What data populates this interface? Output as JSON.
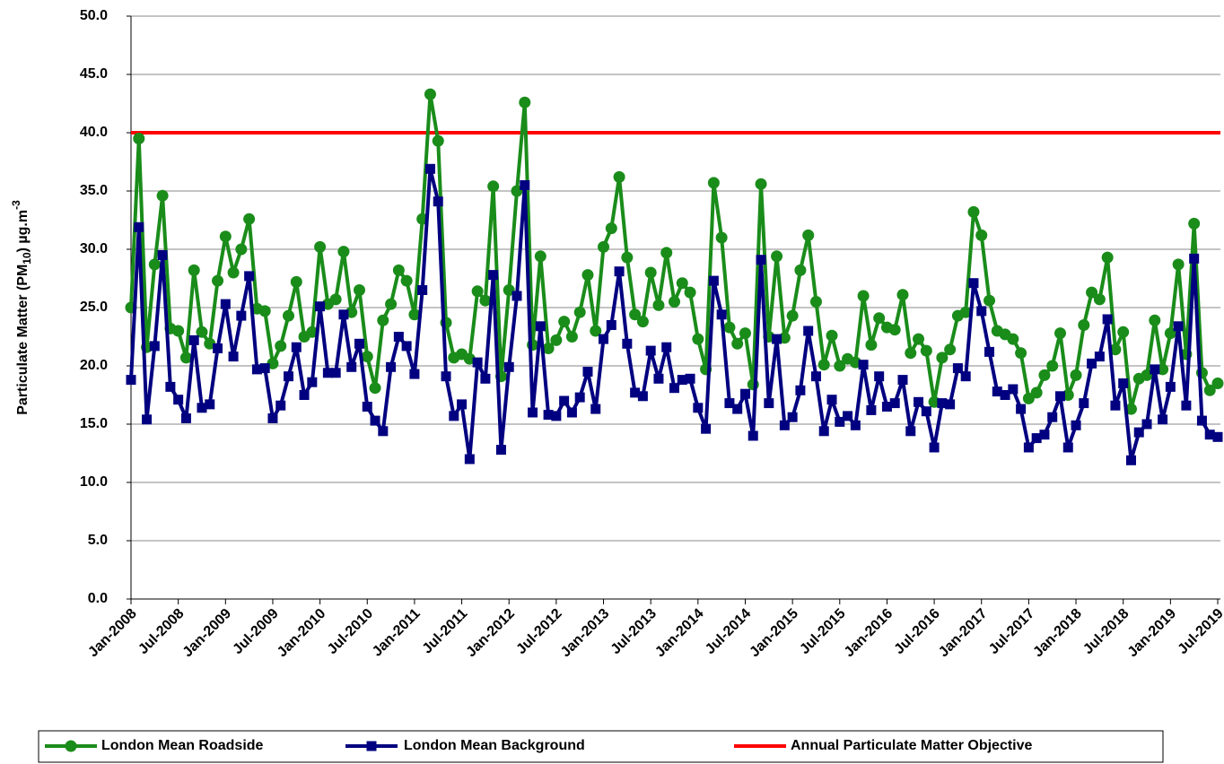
{
  "chart_data": {
    "type": "line",
    "y_label": [
      "Particulate Matter (PM",
      "10",
      ") µg.m",
      "-3"
    ],
    "categories": [
      "Jan-2008",
      null,
      null,
      null,
      null,
      null,
      "Jul-2008",
      null,
      null,
      null,
      null,
      null,
      "Jan-2009",
      null,
      null,
      null,
      null,
      null,
      "Jul-2009",
      null,
      null,
      null,
      null,
      null,
      "Jan-2010",
      null,
      null,
      null,
      null,
      null,
      "Jul-2010",
      null,
      null,
      null,
      null,
      null,
      "Jan-2011",
      null,
      null,
      null,
      null,
      null,
      "Jul-2011",
      null,
      null,
      null,
      null,
      null,
      "Jan-2012",
      null,
      null,
      null,
      null,
      null,
      "Jul-2012",
      null,
      null,
      null,
      null,
      null,
      "Jan-2013",
      null,
      null,
      null,
      null,
      null,
      "Jul-2013",
      null,
      null,
      null,
      null,
      null,
      "Jan-2014",
      null,
      null,
      null,
      null,
      null,
      "Jul-2014",
      null,
      null,
      null,
      null,
      null,
      "Jan-2015",
      null,
      null,
      null,
      null,
      null,
      "Jul-2015",
      null,
      null,
      null,
      null,
      null,
      "Jan-2016",
      null,
      null,
      null,
      null,
      null,
      "Jul-2016",
      null,
      null,
      null,
      null,
      null,
      "Jan-2017",
      null,
      null,
      null,
      null,
      null,
      "Jul-2017",
      null,
      null,
      null,
      null,
      null,
      "Jan-2018",
      null,
      null,
      null,
      null,
      null,
      "Jul-2018",
      null,
      null,
      null,
      null,
      null,
      "Jan-2019",
      null,
      null,
      null,
      null,
      null,
      "Jul-2019"
    ],
    "series": [
      {
        "name": "London Mean Roadside",
        "color": "#1a8c1a",
        "marker": "circle",
        "values": [
          25.0,
          39.5,
          21.6,
          28.7,
          34.6,
          23.2,
          23.0,
          20.7,
          28.2,
          22.9,
          21.9,
          27.3,
          31.1,
          28.0,
          30.0,
          32.6,
          24.9,
          24.7,
          20.2,
          21.7,
          24.3,
          27.2,
          22.5,
          22.9,
          30.2,
          25.3,
          25.7,
          29.8,
          24.6,
          26.5,
          20.8,
          18.1,
          23.9,
          25.3,
          28.2,
          27.3,
          24.4,
          32.6,
          43.3,
          39.3,
          23.7,
          20.7,
          21.0,
          20.6,
          26.4,
          25.6,
          35.4,
          19.1,
          26.5,
          35.0,
          42.6,
          21.8,
          29.4,
          21.5,
          22.2,
          23.8,
          22.5,
          24.6,
          27.8,
          23.0,
          30.2,
          31.8,
          36.2,
          29.3,
          24.4,
          23.8,
          28.0,
          25.2,
          29.7,
          25.5,
          27.1,
          26.3,
          22.3,
          19.7,
          35.7,
          31.0,
          23.3,
          21.9,
          22.8,
          18.4,
          35.6,
          22.5,
          29.4,
          22.4,
          24.3,
          28.2,
          31.2,
          25.5,
          20.1,
          22.6,
          20.0,
          20.6,
          20.3,
          26.0,
          21.8,
          24.1,
          23.3,
          23.1,
          26.1,
          21.1,
          22.3,
          21.3,
          16.9,
          20.7,
          21.4,
          24.3,
          24.6,
          33.2,
          31.2,
          25.6,
          23.0,
          22.7,
          22.3,
          21.1,
          17.2,
          17.7,
          19.2,
          20.0,
          22.8,
          17.5,
          19.2,
          23.5,
          26.3,
          25.7,
          29.3,
          21.4,
          22.9,
          16.3,
          18.9,
          19.2,
          23.9,
          19.7,
          22.8,
          28.7,
          21.0,
          32.2,
          19.4,
          17.9,
          18.5
        ]
      },
      {
        "name": "London Mean Background",
        "color": "#000080",
        "marker": "square",
        "values": [
          18.8,
          31.9,
          15.4,
          21.7,
          29.5,
          18.2,
          17.1,
          15.5,
          22.2,
          16.4,
          16.7,
          21.5,
          25.3,
          20.8,
          24.3,
          27.7,
          19.7,
          19.8,
          15.5,
          16.6,
          19.1,
          21.6,
          17.5,
          18.6,
          25.1,
          19.4,
          19.4,
          24.4,
          19.9,
          21.9,
          16.5,
          15.3,
          14.4,
          19.9,
          22.5,
          21.7,
          19.3,
          26.5,
          36.9,
          34.1,
          19.1,
          15.7,
          16.7,
          12.0,
          20.3,
          18.9,
          27.8,
          12.8,
          19.9,
          26.0,
          35.5,
          16.0,
          23.4,
          15.8,
          15.7,
          17.0,
          16.0,
          17.3,
          19.5,
          16.3,
          22.3,
          23.5,
          28.1,
          21.9,
          17.7,
          17.4,
          21.3,
          18.9,
          21.6,
          18.1,
          18.8,
          18.9,
          16.4,
          14.6,
          27.3,
          24.4,
          16.8,
          16.3,
          17.6,
          14.0,
          29.1,
          16.8,
          22.3,
          14.9,
          15.6,
          17.9,
          23.0,
          19.1,
          14.4,
          17.1,
          15.2,
          15.7,
          14.9,
          20.1,
          16.2,
          19.1,
          16.5,
          16.8,
          18.8,
          14.4,
          16.9,
          16.1,
          13.0,
          16.8,
          16.7,
          19.8,
          19.1,
          27.1,
          24.7,
          21.2,
          17.8,
          17.5,
          18.0,
          16.3,
          13.0,
          13.8,
          14.1,
          15.6,
          17.4,
          13.0,
          14.9,
          16.8,
          20.2,
          20.8,
          24.0,
          16.6,
          18.5,
          11.9,
          14.3,
          15.0,
          19.7,
          15.4,
          18.2,
          23.4,
          16.6,
          29.2,
          15.3,
          14.1,
          13.9
        ]
      }
    ],
    "reference_lines": [
      {
        "name": "Annual Particulate Matter Objective",
        "color": "#ff0000",
        "value": 40
      }
    ],
    "ylim": [
      0,
      50
    ],
    "yticks": [
      {
        "value": 0,
        "label": "0.0"
      },
      {
        "value": 5,
        "label": "5.0"
      },
      {
        "value": 10,
        "label": "10.0"
      },
      {
        "value": 15,
        "label": "15.0"
      },
      {
        "value": 20,
        "label": "20.0"
      },
      {
        "value": 25,
        "label": "25.0"
      },
      {
        "value": 30,
        "label": "30.0"
      },
      {
        "value": 35,
        "label": "35.0"
      },
      {
        "value": 40,
        "label": "40.0"
      },
      {
        "value": 45,
        "label": "45.0"
      },
      {
        "value": 50,
        "label": "50.0"
      }
    ],
    "grid": true,
    "legend": "bottom"
  }
}
